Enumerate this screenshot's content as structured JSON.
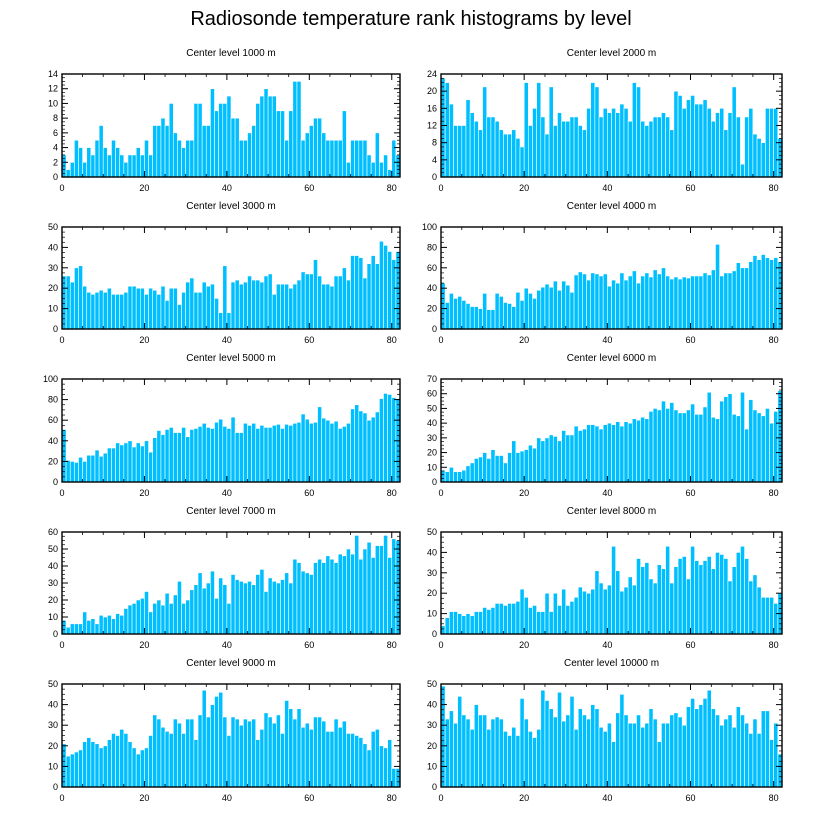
{
  "title": "Radiosonde temperature rank histograms by level",
  "colors": {
    "bar": "#00bfff",
    "bar_edge": "#ffffff",
    "axis": "#000000"
  },
  "chart_data": [
    {
      "type": "bar",
      "title": "Center level 1000 m",
      "xlim": [
        0,
        82
      ],
      "ylim": [
        0,
        14
      ],
      "xticks": [
        0,
        20,
        40,
        60,
        80
      ],
      "yticks": [
        0,
        2,
        4,
        6,
        8,
        10,
        12,
        14
      ],
      "values": [
        3,
        1,
        2,
        5,
        4,
        2,
        4,
        3,
        5,
        7,
        4,
        3,
        5,
        4,
        3,
        2,
        3,
        3,
        4,
        3,
        5,
        3,
        7,
        7,
        8,
        7,
        10,
        6,
        5,
        4,
        5,
        5,
        10,
        10,
        7,
        7,
        12,
        9,
        10,
        10,
        11,
        8,
        8,
        5,
        5,
        6,
        7,
        10,
        11,
        12,
        11,
        11,
        9,
        9,
        5,
        9,
        13,
        13,
        5,
        6,
        7,
        8,
        8,
        6,
        5,
        5,
        5,
        5,
        9,
        2,
        5,
        5,
        5,
        5,
        3,
        2,
        6,
        2,
        3,
        1,
        5,
        3
      ]
    },
    {
      "type": "bar",
      "title": "Center level 2000 m",
      "xlim": [
        0,
        82
      ],
      "ylim": [
        0,
        24
      ],
      "xticks": [
        0,
        20,
        40,
        60,
        80
      ],
      "yticks": [
        0,
        4,
        8,
        12,
        16,
        20,
        24
      ],
      "values": [
        23,
        22,
        17,
        12,
        12,
        12,
        18,
        15,
        13,
        11,
        21,
        14,
        14,
        13,
        11,
        10,
        10,
        11,
        9,
        7,
        22,
        12,
        16,
        22,
        14,
        10,
        21,
        12,
        15,
        13,
        13,
        14,
        14,
        12,
        11,
        16,
        22,
        21,
        14,
        16,
        15,
        16,
        15,
        17,
        16,
        13,
        22,
        21,
        13,
        12,
        13,
        14,
        14,
        15,
        14,
        11,
        20,
        19,
        16,
        18,
        19,
        17,
        17,
        18,
        16,
        13,
        15,
        16,
        11,
        15,
        21,
        14,
        3,
        14,
        16,
        10,
        9,
        8,
        16,
        16,
        16,
        9
      ]
    },
    {
      "type": "bar",
      "title": "Center level 3000 m",
      "xlim": [
        0,
        82
      ],
      "ylim": [
        0,
        50
      ],
      "xticks": [
        0,
        20,
        40,
        60,
        80
      ],
      "yticks": [
        0,
        10,
        20,
        30,
        40,
        50
      ],
      "values": [
        26,
        26,
        23,
        30,
        31,
        21,
        18,
        17,
        18,
        19,
        18,
        20,
        17,
        17,
        17,
        18,
        21,
        21,
        20,
        20,
        17,
        20,
        19,
        17,
        21,
        14,
        20,
        20,
        12,
        18,
        23,
        25,
        18,
        18,
        23,
        21,
        22,
        15,
        8,
        31,
        8,
        23,
        24,
        22,
        23,
        26,
        24,
        24,
        23,
        26,
        27,
        17,
        22,
        22,
        22,
        20,
        22,
        24,
        28,
        27,
        27,
        34,
        26,
        22,
        22,
        21,
        26,
        26,
        30,
        24,
        36,
        36,
        35,
        25,
        32,
        36,
        32,
        43,
        41,
        38,
        34,
        38
      ]
    },
    {
      "type": "bar",
      "title": "Center level 4000 m",
      "xlim": [
        0,
        82
      ],
      "ylim": [
        0,
        100
      ],
      "xticks": [
        0,
        20,
        40,
        60,
        80
      ],
      "yticks": [
        0,
        20,
        40,
        60,
        80,
        100
      ],
      "values": [
        45,
        26,
        35,
        30,
        32,
        28,
        25,
        22,
        22,
        20,
        35,
        19,
        19,
        35,
        32,
        26,
        25,
        22,
        36,
        28,
        40,
        35,
        30,
        38,
        41,
        44,
        41,
        47,
        38,
        47,
        43,
        36,
        53,
        56,
        54,
        48,
        55,
        54,
        52,
        54,
        42,
        48,
        45,
        55,
        48,
        52,
        57,
        45,
        52,
        55,
        51,
        58,
        54,
        60,
        52,
        49,
        51,
        49,
        51,
        50,
        52,
        52,
        52,
        55,
        53,
        58,
        83,
        52,
        55,
        55,
        57,
        65,
        60,
        60,
        66,
        72,
        68,
        73,
        70,
        68,
        70,
        66
      ]
    },
    {
      "type": "bar",
      "title": "Center level 5000 m",
      "xlim": [
        0,
        82
      ],
      "ylim": [
        0,
        100
      ],
      "xticks": [
        0,
        20,
        40,
        60,
        80
      ],
      "yticks": [
        0,
        20,
        40,
        60,
        80,
        100
      ],
      "values": [
        51,
        21,
        20,
        19,
        24,
        20,
        26,
        26,
        31,
        25,
        28,
        33,
        33,
        38,
        36,
        38,
        40,
        34,
        38,
        35,
        40,
        29,
        43,
        50,
        46,
        51,
        53,
        48,
        48,
        53,
        44,
        51,
        52,
        54,
        57,
        53,
        52,
        58,
        61,
        54,
        52,
        63,
        48,
        48,
        57,
        55,
        57,
        52,
        55,
        53,
        53,
        55,
        56,
        52,
        56,
        55,
        57,
        58,
        66,
        61,
        57,
        58,
        73,
        62,
        60,
        57,
        59,
        52,
        54,
        57,
        71,
        75,
        69,
        67,
        60,
        63,
        68,
        81,
        86,
        85,
        82,
        81
      ]
    },
    {
      "type": "bar",
      "title": "Center level 6000 m",
      "xlim": [
        0,
        82
      ],
      "ylim": [
        0,
        70
      ],
      "xticks": [
        0,
        20,
        40,
        60,
        80
      ],
      "yticks": [
        0,
        10,
        20,
        30,
        40,
        50,
        60,
        70
      ],
      "values": [
        8,
        7,
        10,
        7,
        7,
        8,
        11,
        13,
        16,
        17,
        20,
        16,
        22,
        18,
        18,
        13,
        20,
        28,
        20,
        21,
        22,
        25,
        23,
        30,
        28,
        30,
        32,
        31,
        28,
        35,
        32,
        32,
        38,
        35,
        36,
        39,
        39,
        38,
        36,
        39,
        40,
        39,
        41,
        38,
        41,
        40,
        43,
        42,
        44,
        43,
        48,
        50,
        49,
        55,
        50,
        54,
        49,
        47,
        47,
        49,
        53,
        46,
        46,
        51,
        61,
        44,
        43,
        55,
        58,
        60,
        46,
        45,
        61,
        36,
        56,
        49,
        47,
        45,
        50,
        40,
        48,
        62
      ]
    },
    {
      "type": "bar",
      "title": "Center level 7000 m",
      "xlim": [
        0,
        82
      ],
      "ylim": [
        0,
        60
      ],
      "xticks": [
        0,
        20,
        40,
        60,
        80
      ],
      "yticks": [
        0,
        10,
        20,
        30,
        40,
        50,
        60
      ],
      "values": [
        8,
        4,
        6,
        6,
        6,
        13,
        8,
        9,
        6,
        11,
        10,
        11,
        9,
        12,
        11,
        15,
        17,
        18,
        20,
        21,
        25,
        13,
        18,
        20,
        17,
        24,
        18,
        23,
        31,
        18,
        20,
        26,
        29,
        36,
        27,
        30,
        37,
        21,
        33,
        29,
        18,
        35,
        32,
        31,
        30,
        31,
        29,
        35,
        38,
        25,
        33,
        31,
        30,
        32,
        36,
        30,
        44,
        42,
        37,
        36,
        35,
        42,
        44,
        42,
        46,
        44,
        42,
        47,
        46,
        50,
        47,
        58,
        44,
        50,
        54,
        45,
        52,
        52,
        58,
        45,
        56,
        55
      ]
    },
    {
      "type": "bar",
      "title": "Center level 8000 m",
      "xlim": [
        0,
        82
      ],
      "ylim": [
        0,
        50
      ],
      "xticks": [
        0,
        20,
        40,
        60,
        80
      ],
      "yticks": [
        0,
        10,
        20,
        30,
        40,
        50
      ],
      "values": [
        4,
        8,
        11,
        11,
        10,
        9,
        10,
        9,
        11,
        11,
        13,
        12,
        13,
        15,
        15,
        14,
        15,
        15,
        16,
        22,
        18,
        13,
        14,
        11,
        11,
        20,
        11,
        20,
        14,
        22,
        14,
        16,
        18,
        23,
        21,
        20,
        22,
        31,
        25,
        22,
        24,
        43,
        31,
        21,
        23,
        28,
        24,
        37,
        33,
        35,
        27,
        25,
        34,
        32,
        43,
        25,
        33,
        37,
        38,
        27,
        43,
        36,
        34,
        36,
        38,
        32,
        40,
        39,
        37,
        26,
        33,
        40,
        43,
        37,
        26,
        29,
        23,
        18,
        18,
        18,
        15,
        20
      ]
    },
    {
      "type": "bar",
      "title": "Center level 9000 m",
      "xlim": [
        0,
        82
      ],
      "ylim": [
        0,
        50
      ],
      "xticks": [
        0,
        20,
        40,
        60,
        80
      ],
      "yticks": [
        0,
        10,
        20,
        30,
        40,
        50
      ],
      "values": [
        21,
        15,
        16,
        17,
        18,
        22,
        24,
        22,
        21,
        19,
        20,
        23,
        26,
        25,
        28,
        26,
        22,
        19,
        16,
        18,
        19,
        25,
        35,
        33,
        29,
        27,
        26,
        33,
        31,
        26,
        33,
        33,
        23,
        35,
        47,
        34,
        40,
        44,
        46,
        34,
        25,
        34,
        33,
        30,
        33,
        32,
        33,
        23,
        28,
        36,
        34,
        31,
        35,
        26,
        42,
        38,
        33,
        38,
        29,
        31,
        28,
        34,
        34,
        32,
        27,
        27,
        33,
        29,
        32,
        26,
        26,
        25,
        24,
        21,
        18,
        27,
        28,
        20,
        19,
        23,
        9,
        9
      ]
    },
    {
      "type": "bar",
      "title": "Center level 10000 m",
      "xlim": [
        0,
        82
      ],
      "ylim": [
        0,
        50
      ],
      "xticks": [
        0,
        20,
        40,
        60,
        80
      ],
      "yticks": [
        0,
        10,
        20,
        30,
        40,
        50
      ],
      "values": [
        49,
        33,
        37,
        31,
        44,
        35,
        33,
        28,
        40,
        35,
        35,
        28,
        33,
        34,
        33,
        27,
        25,
        29,
        25,
        43,
        33,
        27,
        24,
        28,
        47,
        42,
        38,
        34,
        46,
        32,
        35,
        44,
        28,
        38,
        35,
        33,
        40,
        38,
        29,
        27,
        31,
        22,
        36,
        45,
        35,
        31,
        31,
        35,
        29,
        31,
        38,
        33,
        22,
        31,
        31,
        35,
        36,
        34,
        30,
        39,
        43,
        38,
        40,
        43,
        47,
        38,
        35,
        30,
        33,
        35,
        29,
        39,
        35,
        31,
        26,
        33,
        26,
        37,
        37,
        23,
        31,
        16
      ]
    }
  ]
}
